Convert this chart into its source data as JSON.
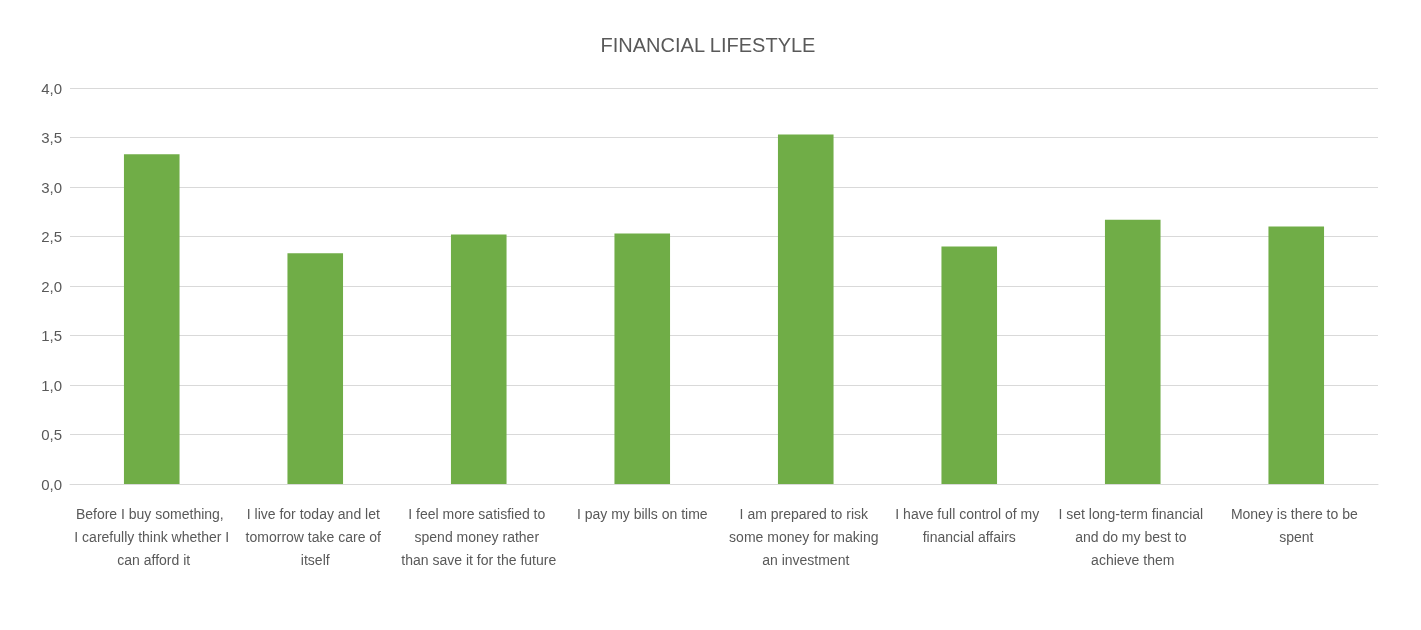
{
  "chart_data": {
    "type": "bar",
    "title": "FINANCIAL LIFESTYLE",
    "categories": [
      "Before I buy something, I carefully think whether I can afford it",
      "I live for today and let tomorrow take care of itself",
      "I feel more satisfied to spend money rather than save it for the future",
      "I pay my bills on time",
      "I am prepared to risk some money for making an investment",
      "I have full control of my financial affairs",
      "I set long-term financial and do my best to achieve them",
      "Money is there to be spent"
    ],
    "values": [
      3.33,
      2.33,
      2.52,
      2.53,
      3.53,
      2.4,
      2.67,
      2.6
    ],
    "color": "#70ad47",
    "ylim": [
      0,
      4
    ],
    "yticks": [
      {
        "value": 0,
        "label": "0,0"
      },
      {
        "value": 0.5,
        "label": "0,5"
      },
      {
        "value": 1,
        "label": "1,0"
      },
      {
        "value": 1.5,
        "label": "1,5"
      },
      {
        "value": 2,
        "label": "2,0"
      },
      {
        "value": 2.5,
        "label": "2,5"
      },
      {
        "value": 3,
        "label": "3,0"
      },
      {
        "value": 3.5,
        "label": "3,5"
      },
      {
        "value": 4,
        "label": "4,0"
      }
    ],
    "grid": "y"
  }
}
